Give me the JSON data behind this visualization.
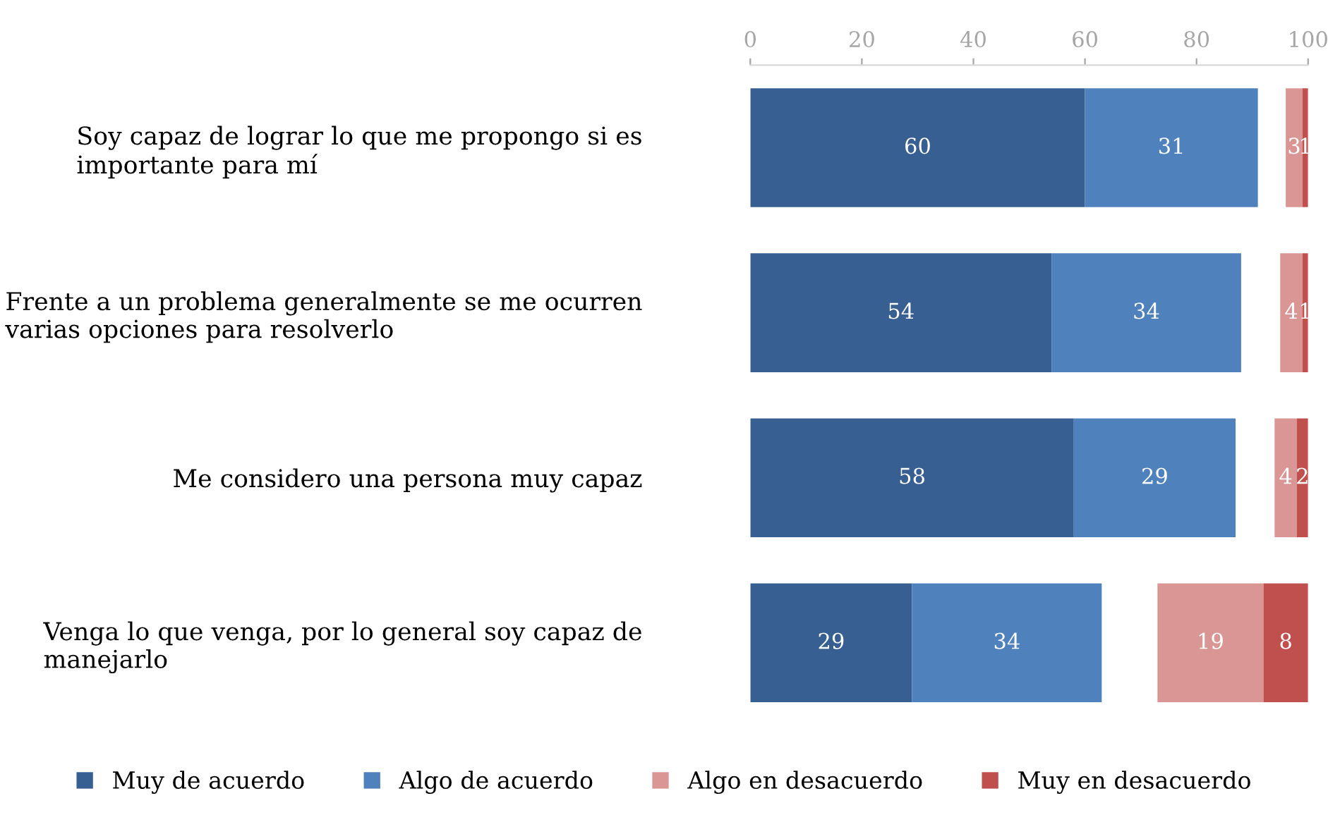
{
  "chart_data": {
    "type": "bar",
    "orientation": "horizontal",
    "categories": [
      "Soy capaz de lograr lo que me propongo si es\nimportante para mí",
      "Frente a un problema generalmente se me ocurren\nvarias opciones para resolverlo",
      "Me considero una persona muy capaz",
      "Venga lo que venga, por lo general soy capaz de\nmanejarlo"
    ],
    "series": [
      {
        "name": "Muy de acuerdo",
        "color": "#375f91",
        "values": [
          60,
          54,
          58,
          29
        ],
        "base": [
          0,
          0,
          0,
          0
        ]
      },
      {
        "name": "Algo de acuerdo",
        "color": "#4f81bd",
        "values": [
          31,
          34,
          29,
          34
        ],
        "base": [
          60,
          54,
          58,
          29
        ]
      },
      {
        "name": "Algo en desacuerdo",
        "color": "#d99694",
        "values": [
          3,
          4,
          4,
          19
        ],
        "base": [
          96,
          95,
          94,
          73
        ]
      },
      {
        "name": "Muy en desacuerdo",
        "color": "#c0504d",
        "values": [
          1,
          1,
          2,
          8
        ],
        "base": [
          99,
          99,
          98,
          92
        ]
      }
    ],
    "xlim": [
      0,
      100
    ],
    "xticks": [
      0,
      20,
      40,
      60,
      80,
      100
    ],
    "grid": false,
    "legend": "bottom",
    "data_labels": true
  }
}
